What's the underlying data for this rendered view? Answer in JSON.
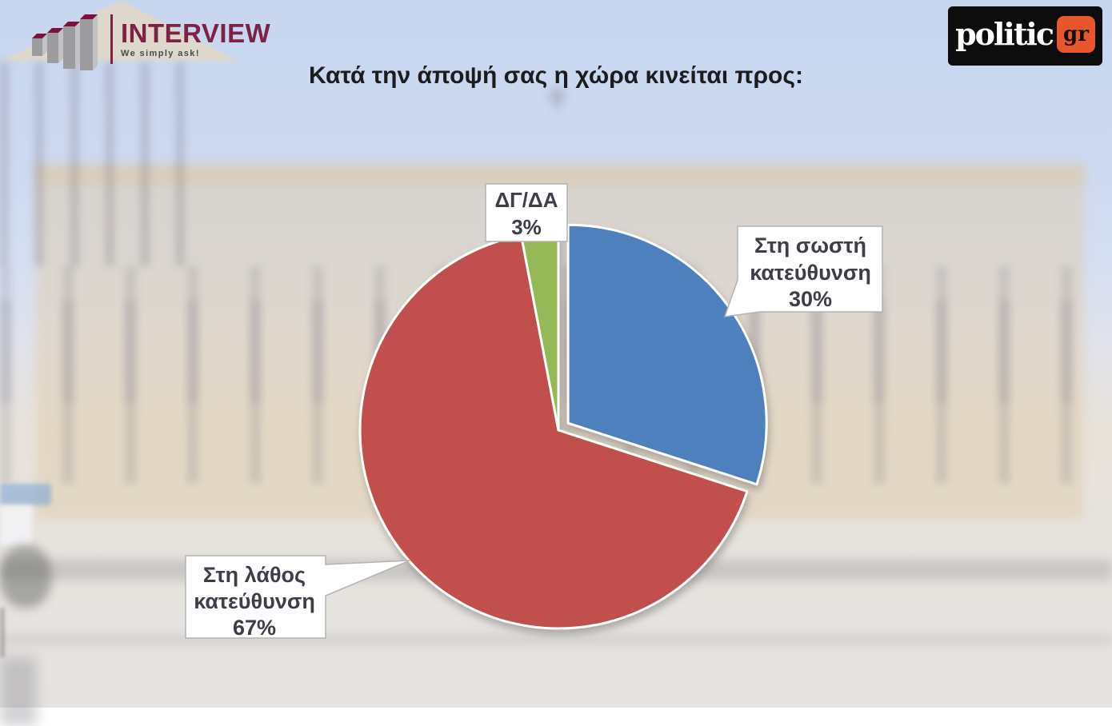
{
  "branding": {
    "interview": {
      "name": "INTERVIEW",
      "tagline": "We simply ask!"
    },
    "politic": {
      "main": "politic",
      "suffix": "gr"
    }
  },
  "header": {
    "title": "Κατά την άποψή σας η χώρα κινείται προς:"
  },
  "chart_data": {
    "type": "pie",
    "title": "Κατά την άποψή σας η χώρα κινείται προς:",
    "unit": "%",
    "direction": "clockwise",
    "start_angle_deg": 0,
    "legend_position": "none",
    "slices": [
      {
        "id": "right-direction",
        "label": "Στη σωστή κατεύθυνση",
        "value": 30,
        "color": "#4d80bd",
        "exploded": true
      },
      {
        "id": "wrong-direction",
        "label": "Στη λάθος κατεύθυνση",
        "value": 67,
        "color": "#c0504d",
        "exploded": false
      },
      {
        "id": "dk-na",
        "label": "ΔΓ/ΔΑ",
        "value": 3,
        "color": "#94b957",
        "exploded": false
      }
    ]
  },
  "callouts": {
    "dk_na": {
      "line1": "ΔΓ/ΔΑ",
      "line2": "3%"
    },
    "right": {
      "line1": "Στη σωστή",
      "line2": "κατεύθυνση",
      "line3": "30%"
    },
    "wrong": {
      "line1": "Στη λάθος",
      "line2": "κατεύθυνση",
      "line3": "67%"
    }
  }
}
